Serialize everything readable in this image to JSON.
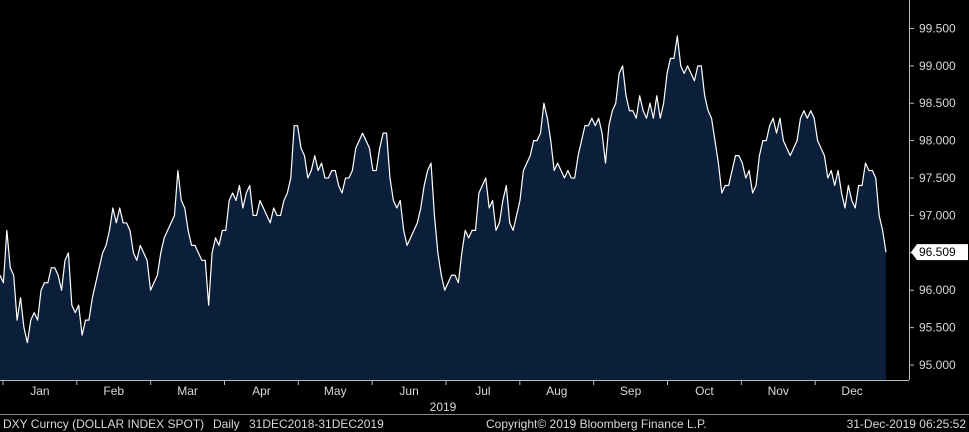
{
  "chart_data": {
    "type": "area",
    "ylim": [
      94.8,
      99.8
    ],
    "y_ticks": [
      95.0,
      95.5,
      96.0,
      96.5,
      97.0,
      97.5,
      98.0,
      98.5,
      99.0,
      99.5
    ],
    "y_tick_labels": [
      "95.000",
      "95.500",
      "96.000",
      "96.500",
      "97.000",
      "97.500",
      "98.000",
      "98.500",
      "99.000",
      "99.500"
    ],
    "x_tick_labels": [
      "Jan",
      "Feb",
      "Mar",
      "Apr",
      "May",
      "Jun",
      "Jul",
      "Aug",
      "Sep",
      "Oct",
      "Nov",
      "Dec"
    ],
    "x_year_label": "2019",
    "last_value": 96.509,
    "last_value_label": "96.509",
    "grid": false,
    "colors": {
      "fill": "#0b1f3a",
      "line": "#ffffff",
      "background": "#000000",
      "axis": "#bbbbbb",
      "label_box": "#ffffff"
    },
    "series": [
      {
        "values": [
          96.2,
          96.1,
          96.8,
          96.3,
          96.2,
          95.6,
          95.9,
          95.5,
          95.3,
          95.6,
          95.7,
          95.6,
          96.0,
          96.1,
          96.1,
          96.3,
          96.3,
          96.2,
          96.0,
          96.4,
          96.5,
          95.8,
          95.7,
          95.8,
          95.4,
          95.6,
          95.6,
          95.9,
          96.1,
          96.3,
          96.5,
          96.6,
          96.8,
          97.1,
          96.9,
          97.1,
          96.9,
          96.9,
          96.8,
          96.5,
          96.4,
          96.6,
          96.5,
          96.4,
          96.0,
          96.1,
          96.2,
          96.5,
          96.7,
          96.8,
          96.9,
          97.0,
          97.6,
          97.2,
          97.1,
          96.8,
          96.6,
          96.6,
          96.5,
          96.4,
          96.4,
          95.8,
          96.5,
          96.7,
          96.6,
          96.8,
          96.8,
          97.2,
          97.3,
          97.2,
          97.4,
          97.1,
          97.3,
          97.4,
          97.0,
          97.0,
          97.2,
          97.1,
          97.0,
          96.9,
          97.1,
          97.0,
          97.0,
          97.2,
          97.3,
          97.5,
          98.2,
          98.2,
          97.9,
          97.8,
          97.5,
          97.6,
          97.8,
          97.6,
          97.7,
          97.5,
          97.5,
          97.6,
          97.6,
          97.4,
          97.3,
          97.5,
          97.5,
          97.6,
          97.9,
          98.0,
          98.1,
          98.0,
          97.9,
          97.6,
          97.6,
          97.9,
          98.1,
          98.1,
          97.5,
          97.2,
          97.1,
          97.2,
          96.8,
          96.6,
          96.7,
          96.8,
          96.9,
          97.1,
          97.4,
          97.6,
          97.7,
          97.0,
          96.5,
          96.2,
          96.0,
          96.1,
          96.2,
          96.2,
          96.1,
          96.5,
          96.8,
          96.7,
          96.8,
          96.8,
          97.3,
          97.4,
          97.5,
          97.1,
          97.2,
          96.8,
          96.9,
          97.2,
          97.4,
          96.9,
          96.8,
          97.0,
          97.2,
          97.6,
          97.7,
          97.8,
          98.0,
          98.0,
          98.1,
          98.5,
          98.3,
          98.0,
          97.6,
          97.7,
          97.6,
          97.5,
          97.6,
          97.5,
          97.5,
          97.8,
          98.0,
          98.2,
          98.2,
          98.3,
          98.2,
          98.3,
          98.1,
          97.7,
          98.2,
          98.4,
          98.5,
          98.9,
          99.0,
          98.6,
          98.4,
          98.4,
          98.3,
          98.6,
          98.4,
          98.3,
          98.5,
          98.3,
          98.6,
          98.3,
          98.5,
          98.9,
          99.1,
          99.1,
          99.4,
          99.0,
          98.9,
          99.0,
          98.9,
          98.8,
          99.0,
          99.0,
          98.6,
          98.4,
          98.3,
          98.0,
          97.7,
          97.3,
          97.4,
          97.4,
          97.6,
          97.8,
          97.8,
          97.7,
          97.5,
          97.6,
          97.3,
          97.4,
          97.8,
          98.0,
          98.0,
          98.2,
          98.3,
          98.1,
          98.3,
          98.0,
          97.9,
          97.8,
          97.9,
          98.0,
          98.3,
          98.4,
          98.3,
          98.4,
          98.3,
          98.0,
          97.9,
          97.8,
          97.5,
          97.6,
          97.4,
          97.6,
          97.3,
          97.1,
          97.4,
          97.2,
          97.1,
          97.4,
          97.4,
          97.7,
          97.6,
          97.6,
          97.5,
          97.0,
          96.8,
          96.509
        ]
      }
    ]
  },
  "footer": {
    "ticker": "DXY Curncy (DOLLAR INDEX SPOT)",
    "frequency": "Daily",
    "range": "31DEC2018-31DEC2019",
    "copyright": "Copyright© 2019 Bloomberg Finance L.P.",
    "timestamp": "31-Dec-2019 06:25:52"
  }
}
